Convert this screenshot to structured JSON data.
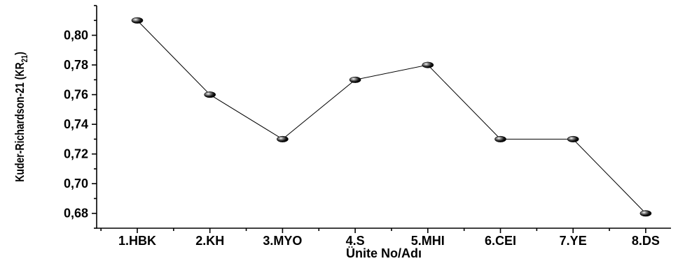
{
  "chart_data": {
    "type": "line",
    "categories": [
      "1.HBK",
      "2.KH",
      "3.MYO",
      "4.S",
      "5.MHI",
      "6.CEI",
      "7.YE",
      "8.DS"
    ],
    "values": [
      0.81,
      0.76,
      0.73,
      0.77,
      0.78,
      0.73,
      0.73,
      0.68
    ],
    "xlabel": "Ünite No/Adı",
    "ylabel_main": "Kuder-Richardson-21 (KR",
    "ylabel_sub": "21",
    "ylabel_close": ")",
    "ylim": [
      0.67,
      0.82
    ],
    "yticks": [
      0.68,
      0.7,
      0.72,
      0.74,
      0.76,
      0.78,
      0.8
    ],
    "ytick_labels": [
      "0,68",
      "0,70",
      "0,72",
      "0,74",
      "0,76",
      "0,78",
      "0,80"
    ],
    "minor_tick_step": 0.01,
    "grid": false,
    "marker": "black-sphere",
    "color": "#000000"
  }
}
